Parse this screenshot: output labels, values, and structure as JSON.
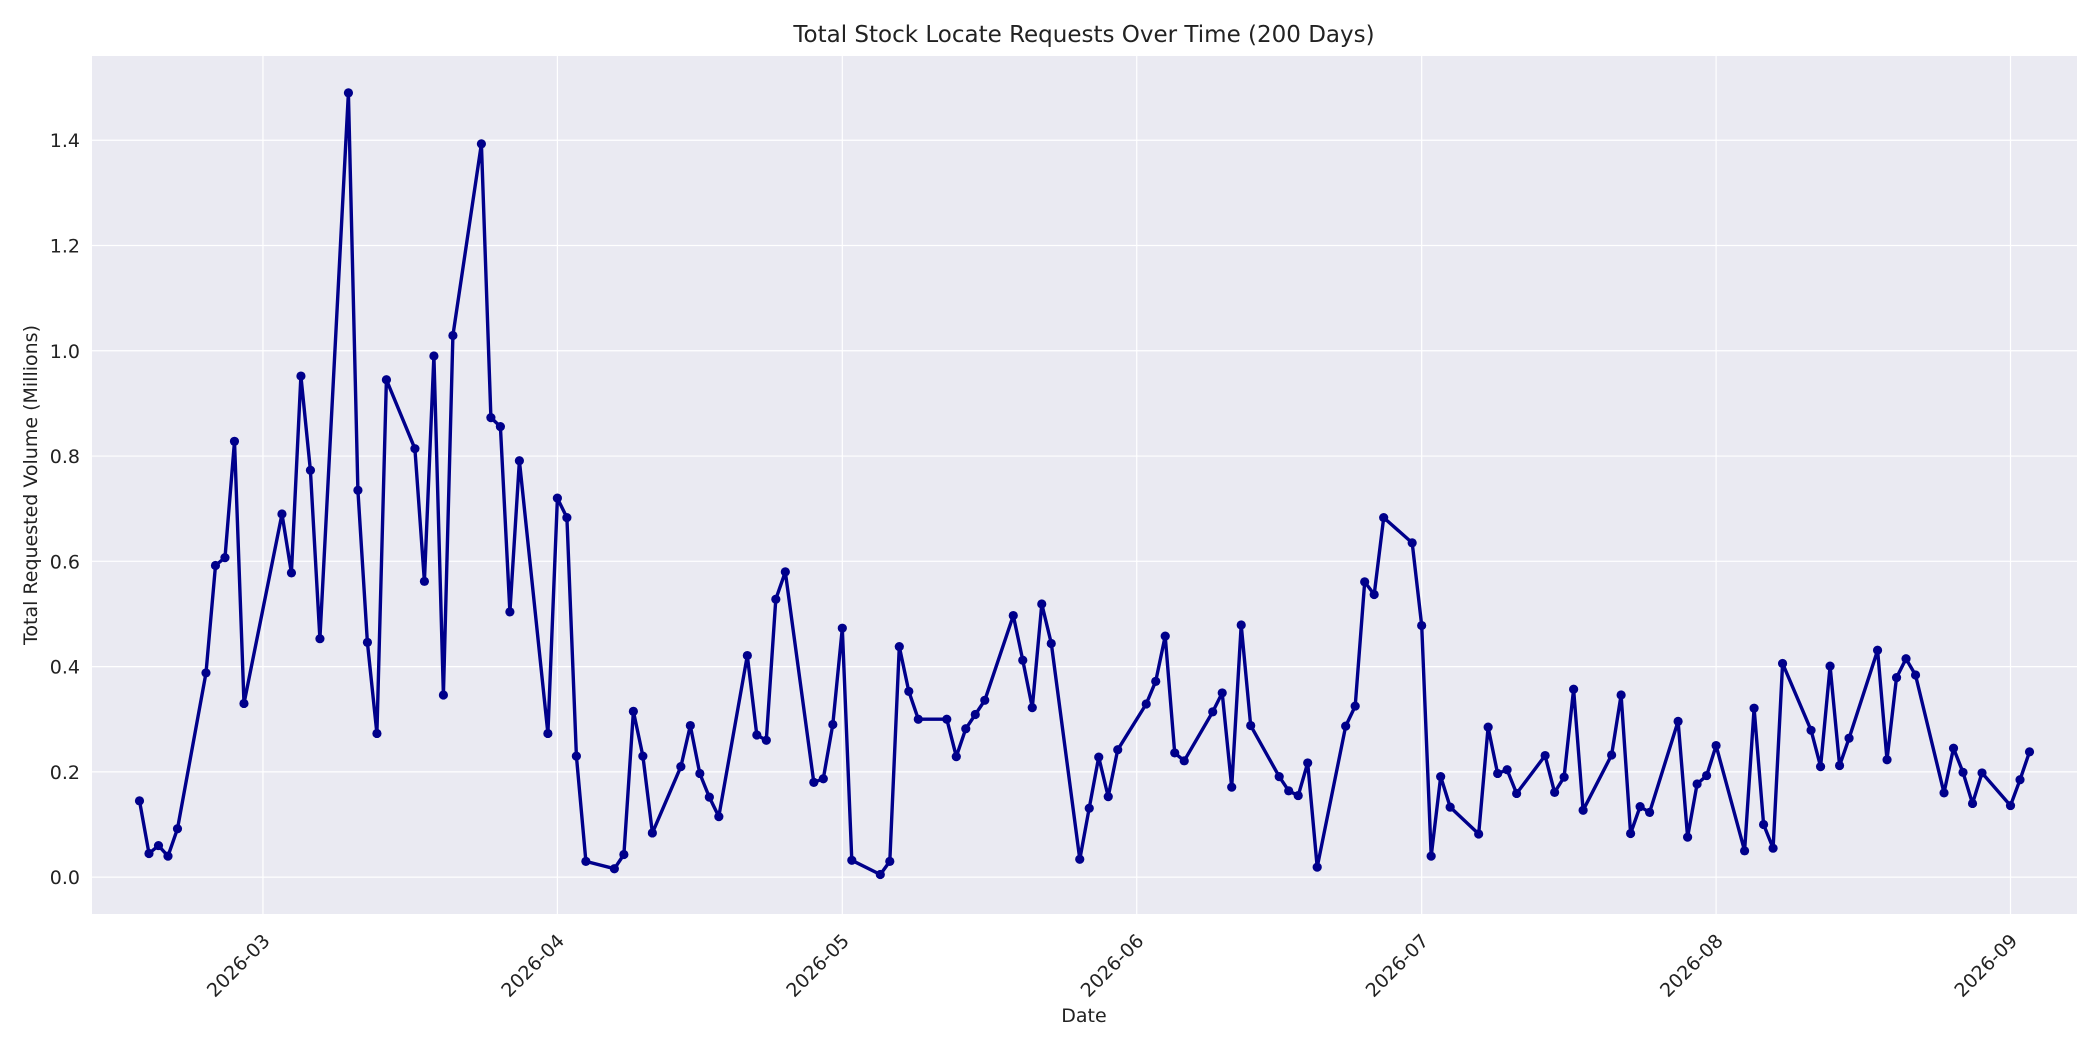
{
  "chart_data": {
    "type": "line",
    "title": "Total Stock Locate Requests Over Time (200 Days)",
    "xlabel": "Date",
    "ylabel": "Total Requested Volume (Millions)",
    "xlim": [
      "2026-02-11",
      "2026-09-08"
    ],
    "ylim": [
      -0.07,
      1.56
    ],
    "x_tick_labels": [
      "2026-03",
      "2026-04",
      "2026-05",
      "2026-06",
      "2026-07",
      "2026-08",
      "2026-09"
    ],
    "x_tick_dates": [
      "2026-03-01",
      "2026-04-01",
      "2026-05-01",
      "2026-06-01",
      "2026-07-01",
      "2026-08-01",
      "2026-09-01"
    ],
    "y_ticks": [
      0.0,
      0.2,
      0.4,
      0.6,
      0.8,
      1.0,
      1.2,
      1.4
    ],
    "y_tick_labels": [
      "0.0",
      "0.2",
      "0.4",
      "0.6",
      "0.8",
      "1.0",
      "1.2",
      "1.4"
    ],
    "grid": true,
    "legend": "none",
    "colors": {
      "line": "#00008b",
      "plot_background": "#eaeaf2",
      "grid": "#ffffff"
    },
    "series": [
      {
        "x": [
          "2026-02-16",
          "2026-02-17",
          "2026-02-18",
          "2026-02-19",
          "2026-02-20",
          "2026-02-23",
          "2026-02-24",
          "2026-02-25",
          "2026-02-26",
          "2026-02-27",
          "2026-03-03",
          "2026-03-04",
          "2026-03-05",
          "2026-03-06",
          "2026-03-07",
          "2026-03-10",
          "2026-03-11",
          "2026-03-12",
          "2026-03-13",
          "2026-03-14",
          "2026-03-17",
          "2026-03-18",
          "2026-03-19",
          "2026-03-20",
          "2026-03-21",
          "2026-03-24",
          "2026-03-25",
          "2026-03-26",
          "2026-03-27",
          "2026-03-28",
          "2026-03-31",
          "2026-04-01",
          "2026-04-02",
          "2026-04-03",
          "2026-04-04",
          "2026-04-07",
          "2026-04-08",
          "2026-04-09",
          "2026-04-10",
          "2026-04-11",
          "2026-04-14",
          "2026-04-15",
          "2026-04-16",
          "2026-04-17",
          "2026-04-18",
          "2026-04-21",
          "2026-04-22",
          "2026-04-23",
          "2026-04-24",
          "2026-04-25",
          "2026-04-28",
          "2026-04-29",
          "2026-04-30",
          "2026-05-01",
          "2026-05-02",
          "2026-05-05",
          "2026-05-06",
          "2026-05-07",
          "2026-05-08",
          "2026-05-09",
          "2026-05-12",
          "2026-05-13",
          "2026-05-14",
          "2026-05-15",
          "2026-05-16",
          "2026-05-19",
          "2026-05-20",
          "2026-05-21",
          "2026-05-22",
          "2026-05-23",
          "2026-05-26",
          "2026-05-27",
          "2026-05-28",
          "2026-05-29",
          "2026-05-30",
          "2026-06-02",
          "2026-06-03",
          "2026-06-04",
          "2026-06-05",
          "2026-06-06",
          "2026-06-09",
          "2026-06-10",
          "2026-06-11",
          "2026-06-12",
          "2026-06-13",
          "2026-06-16",
          "2026-06-17",
          "2026-06-18",
          "2026-06-19",
          "2026-06-20",
          "2026-06-23",
          "2026-06-24",
          "2026-06-25",
          "2026-06-26",
          "2026-06-27",
          "2026-06-30",
          "2026-07-01",
          "2026-07-02",
          "2026-07-03",
          "2026-07-04",
          "2026-07-07",
          "2026-07-08",
          "2026-07-09",
          "2026-07-10",
          "2026-07-11",
          "2026-07-14",
          "2026-07-15",
          "2026-07-16",
          "2026-07-17",
          "2026-07-18",
          "2026-07-21",
          "2026-07-22",
          "2026-07-23",
          "2026-07-24",
          "2026-07-25",
          "2026-07-28",
          "2026-07-29",
          "2026-07-30",
          "2026-07-31",
          "2026-08-01",
          "2026-08-04",
          "2026-08-05",
          "2026-08-06",
          "2026-08-07",
          "2026-08-08",
          "2026-08-11",
          "2026-08-12",
          "2026-08-13",
          "2026-08-14",
          "2026-08-15",
          "2026-08-18",
          "2026-08-19",
          "2026-08-20",
          "2026-08-21",
          "2026-08-22",
          "2026-08-25",
          "2026-08-26",
          "2026-08-27",
          "2026-08-28",
          "2026-08-29",
          "2026-09-01",
          "2026-09-02",
          "2026-09-03"
        ],
        "y": [
          0.145,
          0.045,
          0.06,
          0.04,
          0.092,
          0.388,
          0.592,
          0.607,
          0.828,
          0.33,
          0.69,
          0.578,
          0.952,
          0.773,
          0.453,
          1.49,
          0.735,
          0.446,
          0.273,
          0.945,
          0.814,
          0.562,
          0.99,
          0.346,
          1.029,
          1.393,
          0.873,
          0.856,
          0.504,
          0.791,
          0.273,
          0.72,
          0.683,
          0.23,
          0.03,
          0.016,
          0.043,
          0.315,
          0.23,
          0.084,
          0.21,
          0.288,
          0.197,
          0.152,
          0.115,
          0.421,
          0.27,
          0.26,
          0.528,
          0.58,
          0.18,
          0.187,
          0.29,
          0.473,
          0.032,
          0.005,
          0.03,
          0.438,
          0.353,
          0.3,
          0.3,
          0.229,
          0.282,
          0.309,
          0.336,
          0.497,
          0.412,
          0.322,
          0.519,
          0.444,
          0.034,
          0.131,
          0.228,
          0.153,
          0.242,
          0.329,
          0.372,
          0.458,
          0.236,
          0.221,
          0.314,
          0.35,
          0.171,
          0.479,
          0.288,
          0.191,
          0.164,
          0.155,
          0.217,
          0.019,
          0.287,
          0.325,
          0.561,
          0.537,
          0.683,
          0.635,
          0.478,
          0.04,
          0.191,
          0.133,
          0.082,
          0.285,
          0.197,
          0.204,
          0.159,
          0.231,
          0.161,
          0.19,
          0.357,
          0.127,
          0.232,
          0.346,
          0.083,
          0.134,
          0.123,
          0.296,
          0.076,
          0.177,
          0.193,
          0.25,
          0.05,
          0.321,
          0.1,
          0.055,
          0.406,
          0.279,
          0.21,
          0.401,
          0.212,
          0.264,
          0.431,
          0.223,
          0.379,
          0.415,
          0.384,
          0.16,
          0.245,
          0.199,
          0.14,
          0.198,
          0.136,
          0.185,
          0.238
        ]
      }
    ]
  }
}
